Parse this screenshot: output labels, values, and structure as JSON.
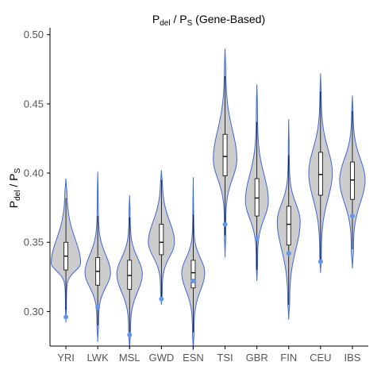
{
  "chart_data": {
    "type": "violin",
    "title": {
      "main": "P",
      "sub1": "del",
      "mid": " / P",
      "sub2": "S",
      "tail": " (Gene-Based)"
    },
    "ylabel": {
      "main": "P",
      "sub1": "del",
      "mid": " / P",
      "sub2": "S"
    },
    "xlabel": "",
    "ylim": [
      0.275,
      0.505
    ],
    "yticks": [
      "0.30",
      "0.35",
      "0.40",
      "0.45",
      "0.50"
    ],
    "categories": [
      "YRI",
      "LWK",
      "MSL",
      "GWD",
      "ESN",
      "TSI",
      "GBR",
      "FIN",
      "CEU",
      "IBS"
    ],
    "violin_color": "#cccccc",
    "outline_color": "#3a66e0",
    "point_color": "#6495ed",
    "groups": [
      {
        "name": "YRI",
        "min": 0.292,
        "max": 0.396,
        "q1": 0.33,
        "median": 0.34,
        "q3": 0.35,
        "wlo": 0.301,
        "whi": 0.382,
        "point": 0.296,
        "mode": 0.335,
        "width": 0.92,
        "low_tail": 0.4
      },
      {
        "name": "LWK",
        "min": 0.278,
        "max": 0.401,
        "q1": 0.319,
        "median": 0.329,
        "q3": 0.339,
        "wlo": 0.29,
        "whi": 0.369,
        "point": 0.303,
        "mode": 0.328,
        "width": 0.8,
        "low_tail": 0.3
      },
      {
        "name": "MSL",
        "min": 0.273,
        "max": 0.384,
        "q1": 0.316,
        "median": 0.326,
        "q3": 0.337,
        "wlo": 0.285,
        "whi": 0.368,
        "point": 0.283,
        "mode": 0.327,
        "width": 0.8,
        "low_tail": 0.3
      },
      {
        "name": "GWD",
        "min": 0.305,
        "max": 0.402,
        "q1": 0.341,
        "median": 0.35,
        "q3": 0.363,
        "wlo": 0.31,
        "whi": 0.395,
        "point": 0.309,
        "mode": 0.35,
        "width": 0.82,
        "low_tail": 0.4
      },
      {
        "name": "ESN",
        "min": 0.272,
        "max": 0.397,
        "q1": 0.317,
        "median": 0.328,
        "q3": 0.337,
        "wlo": 0.285,
        "whi": 0.37,
        "point": 0.322,
        "mode": 0.328,
        "width": 0.72,
        "low_tail": 0.3
      },
      {
        "name": "TSI",
        "min": 0.339,
        "max": 0.49,
        "q1": 0.398,
        "median": 0.412,
        "q3": 0.428,
        "wlo": 0.355,
        "whi": 0.47,
        "point": 0.363,
        "mode": 0.41,
        "width": 0.74,
        "low_tail": 0.4
      },
      {
        "name": "GBR",
        "min": 0.322,
        "max": 0.464,
        "q1": 0.369,
        "median": 0.382,
        "q3": 0.396,
        "wlo": 0.33,
        "whi": 0.437,
        "point": 0.353,
        "mode": 0.38,
        "width": 0.72,
        "low_tail": 0.4
      },
      {
        "name": "FIN",
        "min": 0.294,
        "max": 0.439,
        "q1": 0.348,
        "median": 0.363,
        "q3": 0.376,
        "wlo": 0.305,
        "whi": 0.413,
        "point": 0.342,
        "mode": 0.365,
        "width": 0.72,
        "low_tail": 0.3
      },
      {
        "name": "CEU",
        "min": 0.328,
        "max": 0.472,
        "q1": 0.384,
        "median": 0.399,
        "q3": 0.415,
        "wlo": 0.336,
        "whi": 0.459,
        "point": 0.336,
        "mode": 0.4,
        "width": 0.74,
        "low_tail": 0.4
      },
      {
        "name": "IBS",
        "min": 0.331,
        "max": 0.456,
        "q1": 0.381,
        "median": 0.395,
        "q3": 0.408,
        "wlo": 0.345,
        "whi": 0.445,
        "point": 0.369,
        "mode": 0.395,
        "width": 0.8,
        "low_tail": 0.5
      }
    ]
  }
}
